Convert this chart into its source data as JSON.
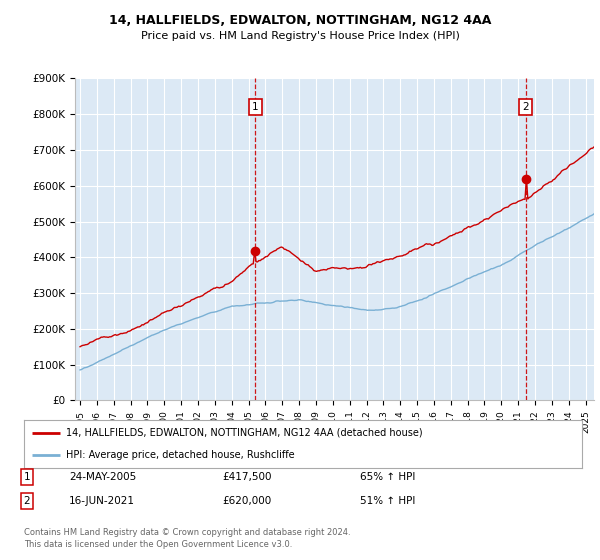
{
  "title": "14, HALLFIELDS, EDWALTON, NOTTINGHAM, NG12 4AA",
  "subtitle": "Price paid vs. HM Land Registry's House Price Index (HPI)",
  "ylim": [
    0,
    900000
  ],
  "yticks": [
    0,
    100000,
    200000,
    300000,
    400000,
    500000,
    600000,
    700000,
    800000,
    900000
  ],
  "ytick_labels": [
    "£0",
    "£100K",
    "£200K",
    "£300K",
    "£400K",
    "£500K",
    "£600K",
    "£700K",
    "£800K",
    "£900K"
  ],
  "background_color": "#ffffff",
  "plot_bg_color": "#dce9f5",
  "grid_color": "#ffffff",
  "red_line_color": "#cc0000",
  "blue_line_color": "#7ab0d4",
  "vline_color": "#cc0000",
  "marker1_year": 2005.39,
  "marker1_value": 417500,
  "marker1_label": "1",
  "marker1_date": "24-MAY-2005",
  "marker1_price": "£417,500",
  "marker1_hpi": "65% ↑ HPI",
  "marker2_year": 2021.46,
  "marker2_value": 620000,
  "marker2_label": "2",
  "marker2_date": "16-JUN-2021",
  "marker2_price": "£620,000",
  "marker2_hpi": "51% ↑ HPI",
  "legend_line1": "14, HALLFIELDS, EDWALTON, NOTTINGHAM, NG12 4AA (detached house)",
  "legend_line2": "HPI: Average price, detached house, Rushcliffe",
  "footer1": "Contains HM Land Registry data © Crown copyright and database right 2024.",
  "footer2": "This data is licensed under the Open Government Licence v3.0.",
  "x_start": 1995,
  "x_end": 2025,
  "xtick_years": [
    1995,
    1996,
    1997,
    1998,
    1999,
    2000,
    2001,
    2002,
    2003,
    2004,
    2005,
    2006,
    2007,
    2008,
    2009,
    2010,
    2011,
    2012,
    2013,
    2014,
    2015,
    2016,
    2017,
    2018,
    2019,
    2020,
    2021,
    2022,
    2023,
    2024,
    2025
  ]
}
